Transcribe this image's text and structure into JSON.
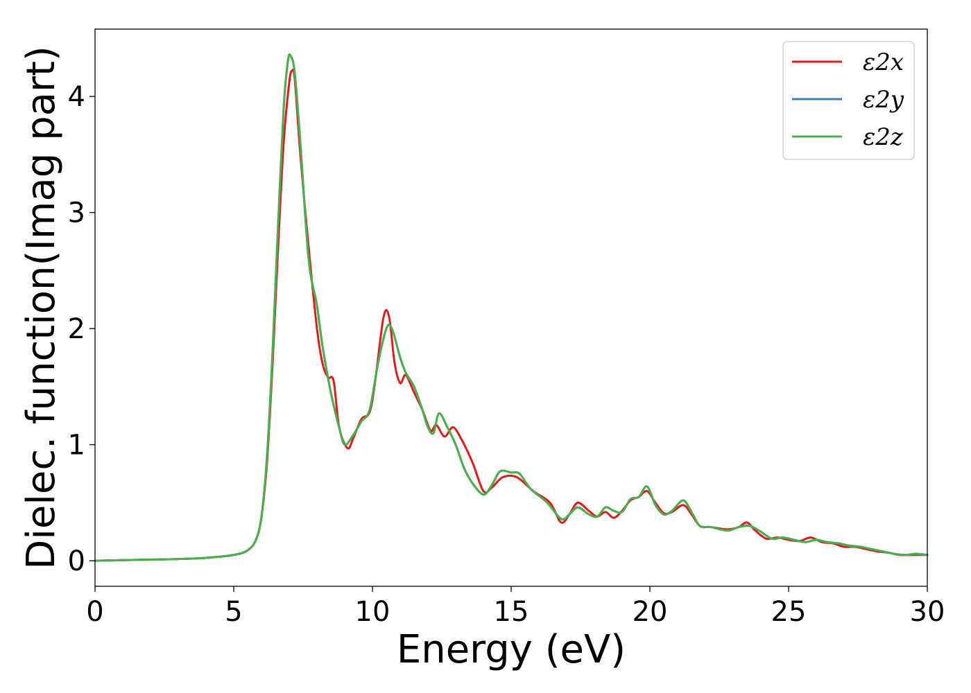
{
  "chart_data": {
    "type": "line",
    "title": "",
    "xlabel": "Energy (eV)",
    "ylabel": "Dielec. function(Imag part)",
    "xlim": [
      0,
      30
    ],
    "ylim": [
      -0.22,
      4.58
    ],
    "xticks": [
      0,
      5,
      10,
      15,
      20,
      25,
      30
    ],
    "yticks": [
      0,
      1,
      2,
      3,
      4
    ],
    "grid": false,
    "legend": {
      "position": "top-right"
    },
    "series": [
      {
        "name": "ε2x",
        "color": "#e41a1c",
        "x": [
          0,
          1,
          2,
          3,
          4,
          5,
          5.5,
          5.8,
          6.0,
          6.2,
          6.4,
          6.6,
          6.8,
          7.0,
          7.1,
          7.2,
          7.4,
          7.7,
          8.0,
          8.2,
          8.4,
          8.6,
          8.8,
          9.1,
          9.3,
          9.6,
          9.9,
          10.1,
          10.4,
          10.6,
          10.8,
          11.0,
          11.2,
          11.5,
          11.8,
          12.1,
          12.3,
          12.6,
          12.9,
          13.2,
          13.6,
          14.0,
          14.3,
          14.7,
          15.2,
          15.8,
          16.4,
          16.8,
          17.1,
          17.4,
          17.8,
          18.1,
          18.4,
          18.7,
          19.0,
          19.3,
          19.6,
          19.9,
          20.2,
          20.5,
          20.8,
          21.2,
          21.5,
          21.8,
          22.2,
          22.8,
          23.2,
          23.5,
          23.8,
          24.2,
          24.6,
          25.0,
          25.4,
          25.8,
          26.2,
          26.6,
          27.0,
          27.4,
          27.8,
          28.2,
          28.6,
          29.0,
          29.5,
          30.0
        ],
        "y": [
          0.0,
          0.005,
          0.01,
          0.015,
          0.025,
          0.05,
          0.09,
          0.18,
          0.38,
          0.85,
          1.7,
          2.7,
          3.6,
          4.12,
          4.22,
          4.15,
          3.5,
          2.7,
          2.0,
          1.7,
          1.58,
          1.55,
          1.15,
          0.97,
          1.05,
          1.22,
          1.28,
          1.55,
          2.1,
          2.1,
          1.7,
          1.53,
          1.6,
          1.45,
          1.3,
          1.12,
          1.17,
          1.07,
          1.15,
          1.05,
          0.85,
          0.6,
          0.63,
          0.72,
          0.72,
          0.6,
          0.5,
          0.33,
          0.4,
          0.5,
          0.43,
          0.38,
          0.42,
          0.37,
          0.43,
          0.52,
          0.55,
          0.6,
          0.5,
          0.41,
          0.42,
          0.48,
          0.4,
          0.3,
          0.29,
          0.27,
          0.29,
          0.33,
          0.26,
          0.19,
          0.2,
          0.18,
          0.17,
          0.2,
          0.16,
          0.15,
          0.12,
          0.12,
          0.1,
          0.08,
          0.07,
          0.05,
          0.05,
          0.05
        ]
      },
      {
        "name": "ε2y",
        "color": "#377eb8",
        "x": [
          0,
          1,
          2,
          3,
          4,
          5,
          5.5,
          5.8,
          6.0,
          6.2,
          6.4,
          6.6,
          6.8,
          6.95,
          7.05,
          7.2,
          7.4,
          7.7,
          8.0,
          8.2,
          8.5,
          8.8,
          9.0,
          9.3,
          9.6,
          9.9,
          10.2,
          10.5,
          10.7,
          11.0,
          11.2,
          11.5,
          11.8,
          12.0,
          12.2,
          12.4,
          12.7,
          13.0,
          13.3,
          13.6,
          14.0,
          14.3,
          14.6,
          15.0,
          15.3,
          15.7,
          16.3,
          16.8,
          17.1,
          17.4,
          17.8,
          18.1,
          18.4,
          18.7,
          19.0,
          19.3,
          19.6,
          19.9,
          20.2,
          20.5,
          20.8,
          21.2,
          21.5,
          21.8,
          22.2,
          22.8,
          23.2,
          23.6,
          24.0,
          24.4,
          24.8,
          25.2,
          25.6,
          26.0,
          26.4,
          26.8,
          27.2,
          27.6,
          28.0,
          28.4,
          28.8,
          29.2,
          29.6,
          30.0
        ],
        "y": [
          0.0,
          0.005,
          0.01,
          0.015,
          0.025,
          0.05,
          0.09,
          0.18,
          0.38,
          0.9,
          1.8,
          2.9,
          3.9,
          4.3,
          4.35,
          4.2,
          3.6,
          2.6,
          2.2,
          1.85,
          1.45,
          1.15,
          1.0,
          1.08,
          1.2,
          1.3,
          1.7,
          2.0,
          2.0,
          1.75,
          1.62,
          1.5,
          1.3,
          1.15,
          1.1,
          1.27,
          1.15,
          1.0,
          0.8,
          0.67,
          0.57,
          0.65,
          0.77,
          0.76,
          0.75,
          0.62,
          0.5,
          0.36,
          0.4,
          0.46,
          0.4,
          0.38,
          0.46,
          0.43,
          0.42,
          0.53,
          0.55,
          0.64,
          0.48,
          0.4,
          0.43,
          0.52,
          0.42,
          0.3,
          0.29,
          0.26,
          0.29,
          0.3,
          0.25,
          0.19,
          0.2,
          0.18,
          0.16,
          0.18,
          0.16,
          0.15,
          0.13,
          0.12,
          0.1,
          0.08,
          0.06,
          0.05,
          0.06,
          0.05
        ]
      },
      {
        "name": "ε2z",
        "color": "#4daf4a",
        "x": [
          0,
          1,
          2,
          3,
          4,
          5,
          5.5,
          5.8,
          6.0,
          6.2,
          6.4,
          6.6,
          6.8,
          6.95,
          7.05,
          7.2,
          7.4,
          7.7,
          8.0,
          8.2,
          8.5,
          8.8,
          9.0,
          9.3,
          9.6,
          9.9,
          10.2,
          10.5,
          10.7,
          11.0,
          11.2,
          11.5,
          11.8,
          12.0,
          12.2,
          12.4,
          12.7,
          13.0,
          13.3,
          13.6,
          14.0,
          14.3,
          14.6,
          15.0,
          15.3,
          15.7,
          16.3,
          16.8,
          17.1,
          17.4,
          17.8,
          18.1,
          18.4,
          18.7,
          19.0,
          19.3,
          19.6,
          19.9,
          20.2,
          20.5,
          20.8,
          21.2,
          21.5,
          21.8,
          22.2,
          22.8,
          23.2,
          23.6,
          24.0,
          24.4,
          24.8,
          25.2,
          25.6,
          26.0,
          26.4,
          26.8,
          27.2,
          27.6,
          28.0,
          28.4,
          28.8,
          29.2,
          29.6,
          30.0
        ],
        "y": [
          0.0,
          0.005,
          0.01,
          0.015,
          0.025,
          0.05,
          0.09,
          0.18,
          0.38,
          0.9,
          1.8,
          2.9,
          3.9,
          4.3,
          4.35,
          4.2,
          3.6,
          2.6,
          2.2,
          1.85,
          1.45,
          1.15,
          1.0,
          1.08,
          1.2,
          1.3,
          1.7,
          2.0,
          2.0,
          1.75,
          1.62,
          1.5,
          1.3,
          1.15,
          1.1,
          1.27,
          1.15,
          1.0,
          0.8,
          0.67,
          0.57,
          0.65,
          0.77,
          0.76,
          0.75,
          0.62,
          0.5,
          0.36,
          0.4,
          0.46,
          0.4,
          0.38,
          0.46,
          0.43,
          0.42,
          0.53,
          0.55,
          0.64,
          0.48,
          0.4,
          0.43,
          0.52,
          0.42,
          0.3,
          0.29,
          0.26,
          0.29,
          0.3,
          0.25,
          0.19,
          0.2,
          0.18,
          0.16,
          0.18,
          0.16,
          0.15,
          0.13,
          0.12,
          0.1,
          0.08,
          0.06,
          0.05,
          0.06,
          0.05
        ]
      }
    ]
  }
}
